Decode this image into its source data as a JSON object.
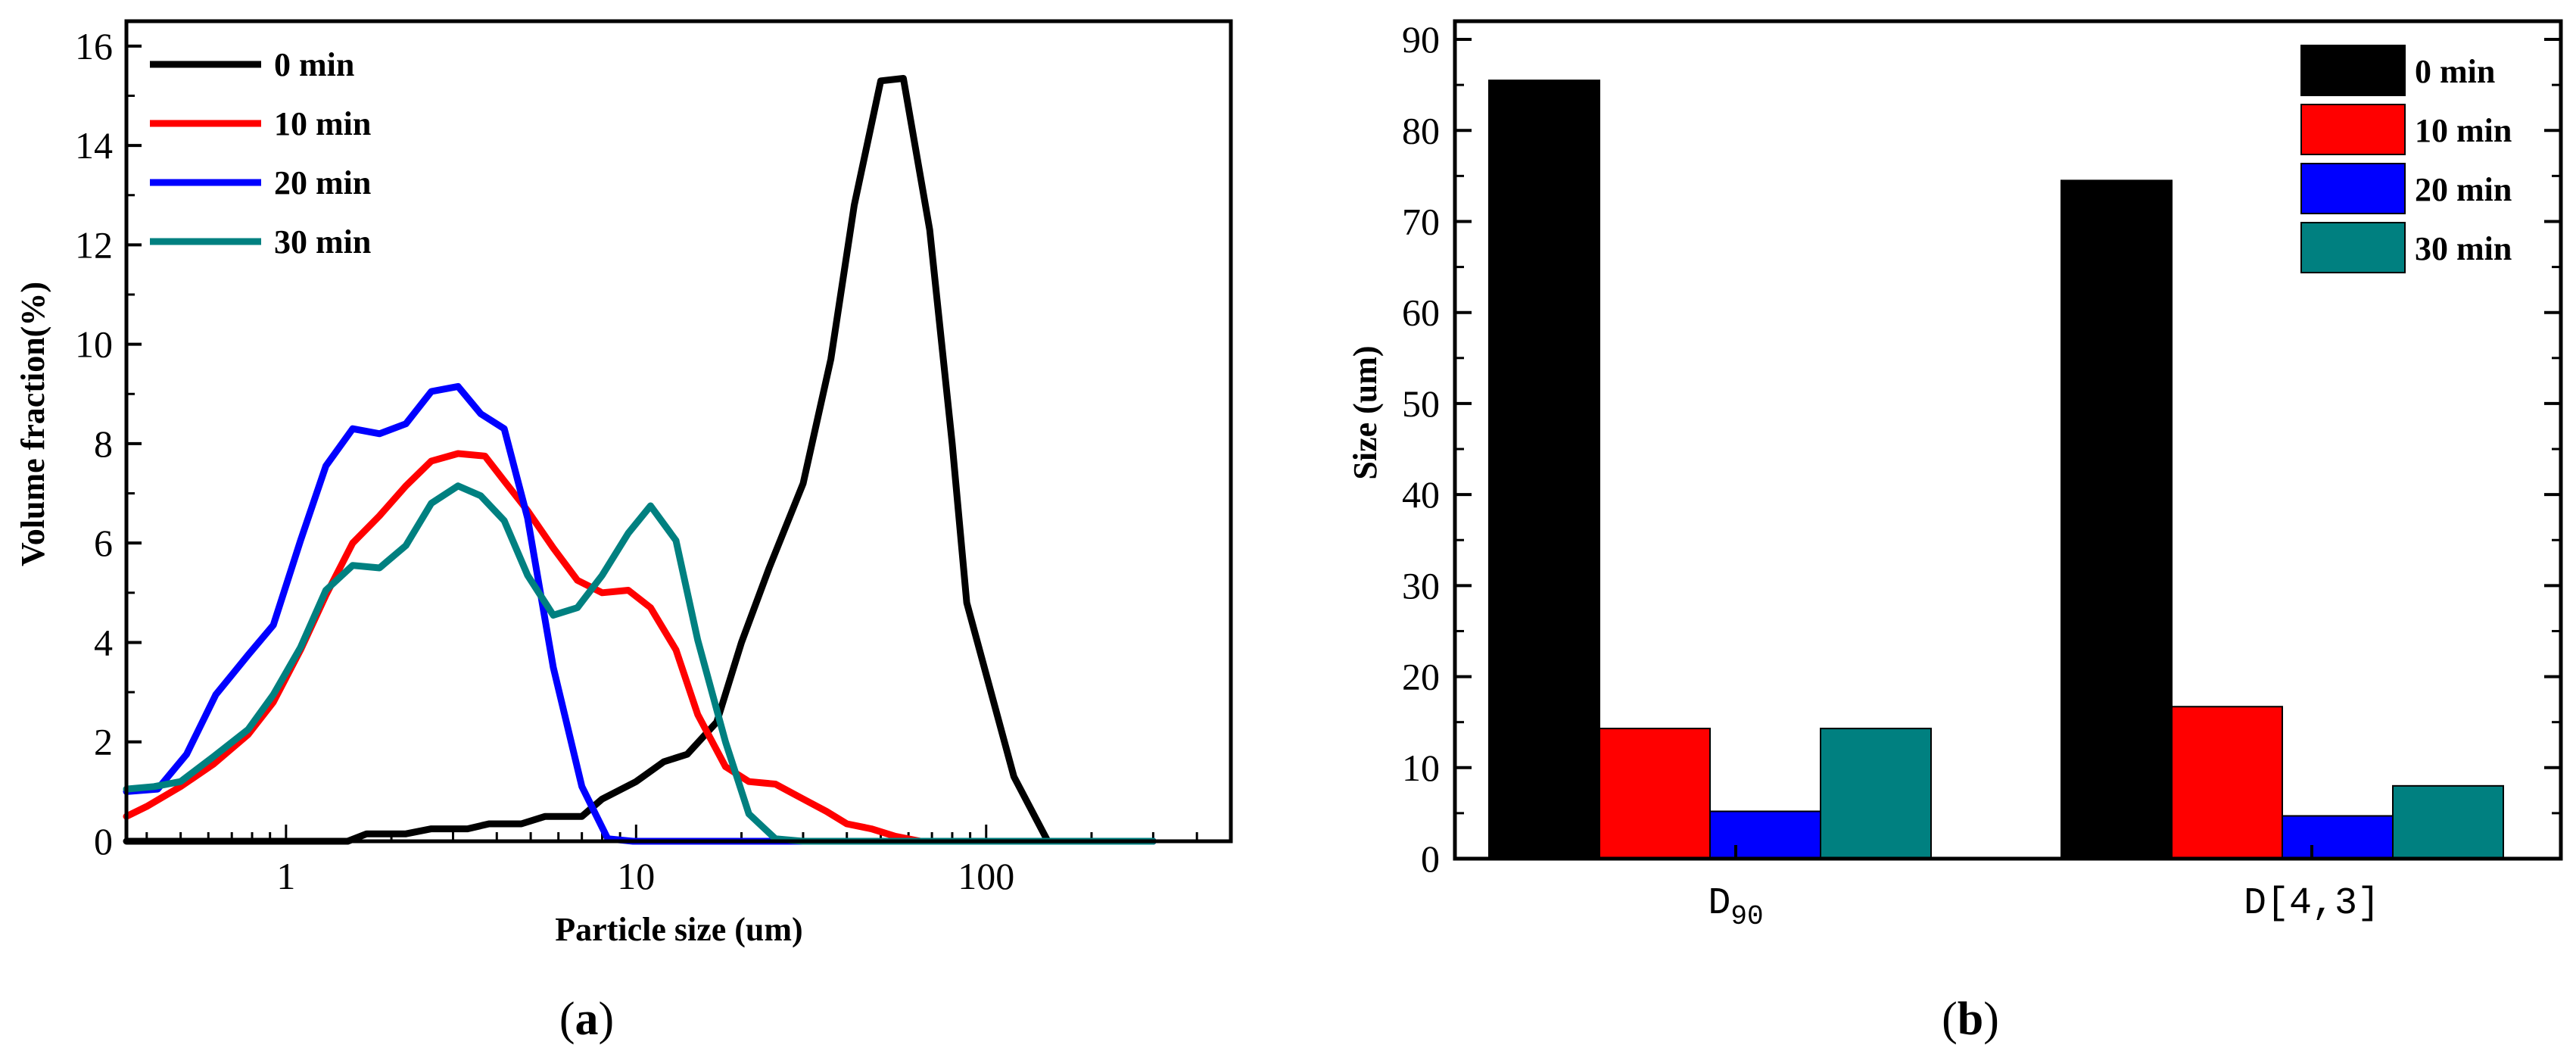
{
  "chart_data": [
    {
      "type": "line",
      "panel_label": "(a)",
      "panel_letter": "a",
      "xlabel": "Particle size (um)",
      "ylabel": "Volume fraction(%)",
      "xscale": "log",
      "xlim": [
        0.35,
        500
      ],
      "ylim": [
        0,
        16.5
      ],
      "xticks": [
        {
          "value": 1,
          "label": "1"
        },
        {
          "value": 10,
          "label": "10"
        },
        {
          "value": 100,
          "label": "100"
        }
      ],
      "yticks": [
        {
          "value": 0,
          "label": "0"
        },
        {
          "value": 2,
          "label": "2"
        },
        {
          "value": 4,
          "label": "4"
        },
        {
          "value": 6,
          "label": "6"
        },
        {
          "value": 8,
          "label": "8"
        },
        {
          "value": 10,
          "label": "10"
        },
        {
          "value": 12,
          "label": "12"
        },
        {
          "value": 14,
          "label": "14"
        },
        {
          "value": 16,
          "label": "16"
        }
      ],
      "legend_position": "top-left",
      "series": [
        {
          "name": "0 min",
          "color": "#000000",
          "x": [
            0.35,
            0.5,
            0.8,
            1.5,
            1.7,
            2.2,
            2.6,
            3.3,
            3.8,
            4.7,
            5.5,
            7,
            8,
            10,
            12,
            14,
            17,
            20,
            24,
            30,
            36,
            42,
            50,
            58,
            69,
            80,
            88,
            120,
            150,
            300
          ],
          "y": [
            0,
            0,
            0,
            0,
            0.15,
            0.15,
            0.25,
            0.25,
            0.35,
            0.35,
            0.5,
            0.5,
            0.85,
            1.2,
            1.6,
            1.75,
            2.4,
            4.0,
            5.5,
            7.2,
            9.7,
            12.8,
            15.3,
            15.35,
            12.3,
            8.0,
            4.8,
            1.3,
            0,
            0
          ]
        },
        {
          "name": "10 min",
          "color": "#ff0000",
          "x": [
            0.35,
            0.4,
            0.5,
            0.62,
            0.78,
            0.92,
            1.1,
            1.3,
            1.55,
            1.85,
            2.2,
            2.6,
            3.1,
            3.7,
            4.2,
            4.9,
            5.8,
            6.8,
            8,
            9.5,
            11,
            13,
            15,
            18,
            21,
            25,
            30,
            35,
            40,
            47,
            55,
            65,
            75,
            300
          ],
          "y": [
            0.5,
            0.7,
            1.1,
            1.55,
            2.15,
            2.8,
            3.85,
            4.95,
            6.0,
            6.55,
            7.15,
            7.65,
            7.8,
            7.75,
            7.25,
            6.65,
            5.9,
            5.25,
            5.0,
            5.05,
            4.7,
            3.85,
            2.55,
            1.5,
            1.2,
            1.15,
            0.85,
            0.6,
            0.35,
            0.25,
            0.1,
            0,
            0,
            0
          ]
        },
        {
          "name": "20 min",
          "color": "#0000ff",
          "x": [
            0.35,
            0.43,
            0.52,
            0.63,
            0.78,
            0.92,
            1.1,
            1.3,
            1.55,
            1.85,
            2.2,
            2.6,
            3.1,
            3.6,
            4.2,
            4.9,
            5.8,
            7,
            8.3,
            9.8,
            11.5,
            13,
            300
          ],
          "y": [
            1.0,
            1.05,
            1.75,
            2.95,
            3.75,
            4.35,
            6.05,
            7.55,
            8.3,
            8.2,
            8.4,
            9.05,
            9.15,
            8.6,
            8.3,
            6.5,
            3.5,
            1.1,
            0.05,
            0,
            0,
            0,
            0
          ]
        },
        {
          "name": "30 min",
          "color": "#008080",
          "x": [
            0.35,
            0.42,
            0.5,
            0.62,
            0.78,
            0.92,
            1.1,
            1.3,
            1.55,
            1.85,
            2.2,
            2.6,
            3.1,
            3.6,
            4.2,
            4.9,
            5.8,
            6.8,
            8,
            9.5,
            11,
            13,
            15,
            18,
            21,
            25,
            30,
            35,
            300
          ],
          "y": [
            1.05,
            1.1,
            1.2,
            1.7,
            2.25,
            2.95,
            3.9,
            5.05,
            5.55,
            5.5,
            5.95,
            6.8,
            7.15,
            6.95,
            6.45,
            5.35,
            4.55,
            4.7,
            5.35,
            6.2,
            6.75,
            6.05,
            4.05,
            2.0,
            0.55,
            0.05,
            0,
            0,
            0
          ]
        }
      ]
    },
    {
      "type": "bar",
      "panel_label": "(b)",
      "panel_letter": "b",
      "ylabel": "Size (um)",
      "xlabel": "",
      "ylim": [
        0,
        92
      ],
      "yticks": [
        {
          "value": 0,
          "label": "0"
        },
        {
          "value": 10,
          "label": "10"
        },
        {
          "value": 20,
          "label": "20"
        },
        {
          "value": 30,
          "label": "30"
        },
        {
          "value": 40,
          "label": "40"
        },
        {
          "value": 50,
          "label": "50"
        },
        {
          "value": 60,
          "label": "60"
        },
        {
          "value": 70,
          "label": "70"
        },
        {
          "value": 80,
          "label": "80"
        },
        {
          "value": 90,
          "label": "90"
        }
      ],
      "categories": [
        {
          "main": "D",
          "sub": "90"
        },
        {
          "main": "D[4,3]",
          "sub": ""
        }
      ],
      "legend_position": "top-right",
      "series": [
        {
          "name": "0 min",
          "color": "#000000",
          "values": [
            85.5,
            74.5
          ]
        },
        {
          "name": "10 min",
          "color": "#ff0000",
          "values": [
            14.3,
            16.7
          ]
        },
        {
          "name": "20 min",
          "color": "#0000ff",
          "values": [
            5.2,
            4.7
          ]
        },
        {
          "name": "30 min",
          "color": "#008080",
          "values": [
            14.3,
            8.0
          ]
        }
      ]
    }
  ]
}
